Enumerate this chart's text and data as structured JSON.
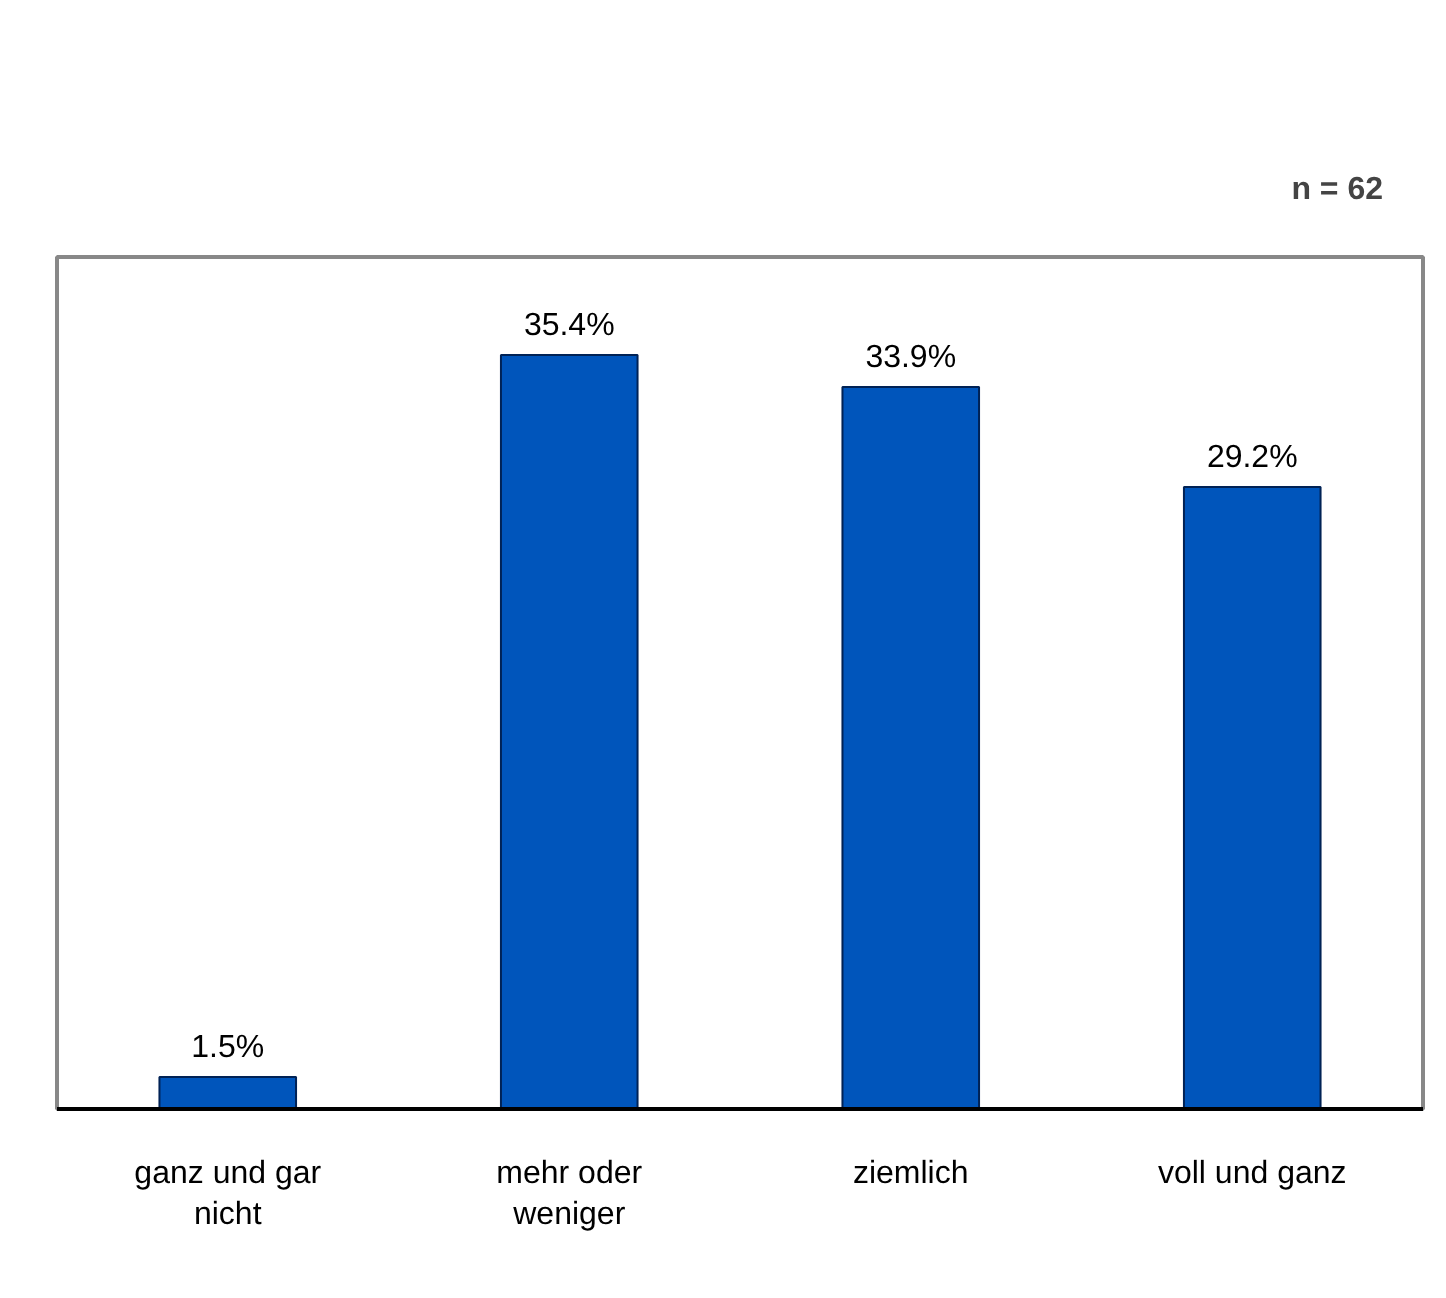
{
  "chart_data": {
    "type": "bar",
    "categories": [
      "ganz und gar nicht",
      "mehr oder weniger",
      "ziemlich",
      "voll und ganz"
    ],
    "values": [
      1.5,
      35.4,
      33.9,
      29.2
    ],
    "color": "#0055bb",
    "value_labels": [
      "1.5%",
      "35.4%",
      "33.9%",
      "29.2%"
    ],
    "ylim": [
      0,
      40
    ],
    "tick_labels": "x",
    "grid": false,
    "annotations": [
      "n = 62"
    ]
  }
}
